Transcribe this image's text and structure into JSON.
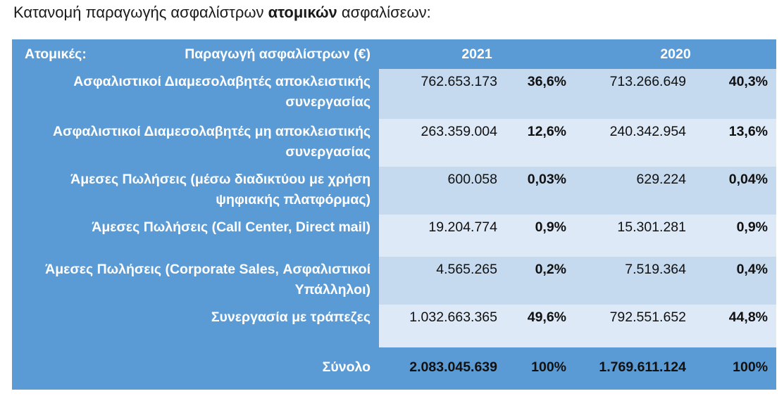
{
  "heading": {
    "prefix": "Κατανομή παραγωγής ασφαλίστρων ",
    "bold": "ατομικών",
    "suffix": " ασφαλίσεων:"
  },
  "table": {
    "header": {
      "label_left": "Ατομικές:",
      "label_right": "Παραγωγή ασφαλίστρων   (€)",
      "year_a": "2021",
      "year_b": "2020"
    },
    "rows": [
      {
        "label": "Ασφαλιστικοί Διαμεσολαβητές αποκλειστικής συνεργασίας",
        "v2021": "762.653.173",
        "p2021": "36,6%",
        "v2020": "713.266.649",
        "p2020": "40,3%"
      },
      {
        "label": "Ασφαλιστικοί Διαμεσολαβητές  μη αποκλειστικής συνεργασίας",
        "v2021": "263.359.004",
        "p2021": "12,6%",
        "v2020": "240.342.954",
        "p2020": "13,6%"
      },
      {
        "label": "Άμεσες Πωλήσεις  (μέσω διαδικτύου με χρήση ψηφιακής πλατφόρμας)",
        "v2021": "600.058",
        "p2021": "0,03%",
        "v2020": "629.224",
        "p2020": "0,04%"
      },
      {
        "label": "Άμεσες Πωλήσεις  (Call Center,  Direct mail)",
        "v2021": "19.204.774",
        "p2021": "0,9%",
        "v2020": "15.301.281",
        "p2020": "0,9%"
      },
      {
        "label": "Άμεσες Πωλήσεις  (Corporate Sales, Ασφαλιστικοί Υπάλληλοι)",
        "v2021": "4.565.265",
        "p2021": "0,2%",
        "v2020": "7.519.364",
        "p2020": "0,4%"
      },
      {
        "label": "Συνεργασία με τράπεζες",
        "v2021": "1.032.663.365",
        "p2021": "49,6%",
        "v2020": "792.551.652",
        "p2020": "44,8%"
      }
    ],
    "total": {
      "label": "Σύνολο",
      "v2021": "2.083.045.639",
      "p2021": "100%",
      "v2020": "1.769.611.124",
      "p2020": "100%"
    }
  },
  "colors": {
    "header_blue": "#5b9bd5",
    "cell_dark": "#c5d9ef",
    "cell_light": "#dde9f6"
  }
}
